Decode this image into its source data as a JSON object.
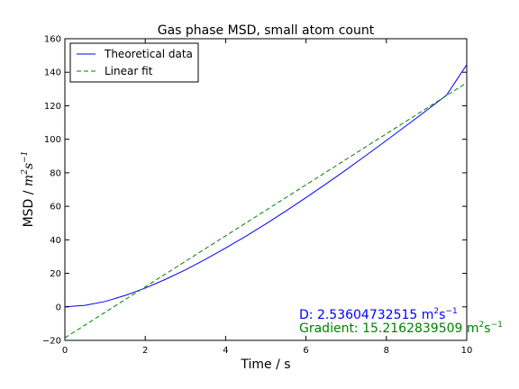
{
  "chart_data": {
    "type": "line",
    "title": "Gas phase MSD, small atom count",
    "xlabel": "Time / s",
    "ylabel_prefix": "MSD / ",
    "ylabel_unit_base_1": "m",
    "ylabel_unit_exp_1": "2",
    "ylabel_unit_base_2": "s",
    "ylabel_unit_exp_2": "−1",
    "xlim": [
      0,
      10
    ],
    "ylim": [
      -20,
      160
    ],
    "xticks": [
      0,
      2,
      4,
      6,
      8,
      10
    ],
    "yticks": [
      -20,
      0,
      20,
      40,
      60,
      80,
      100,
      120,
      140,
      160
    ],
    "xtick_labels": [
      "0",
      "2",
      "4",
      "6",
      "8",
      "10"
    ],
    "ytick_labels": [
      "−20",
      "0",
      "20",
      "40",
      "60",
      "80",
      "100",
      "120",
      "140",
      "160"
    ],
    "grid": false,
    "legend_position": "upper-left",
    "series": [
      {
        "name": "Theoretical data",
        "color": "#0000ff",
        "style": "solid",
        "x": [
          0,
          0.5,
          1,
          1.5,
          2,
          2.5,
          3,
          3.5,
          4,
          4.5,
          5,
          5.5,
          6,
          6.5,
          7,
          7.5,
          8,
          8.5,
          9,
          9.5,
          10
        ],
        "y": [
          0,
          0.9,
          3.2,
          6.8,
          11.2,
          16.4,
          22.1,
          28.4,
          35.1,
          42.1,
          49.5,
          57.2,
          65.2,
          73.4,
          81.8,
          90.5,
          99.3,
          108.2,
          117.2,
          126.4,
          144.5
        ]
      },
      {
        "name": "Linear fit",
        "color": "#008000",
        "style": "dashed",
        "x": [
          0,
          10
        ],
        "y": [
          -18.5,
          133.7
        ]
      }
    ],
    "annotations": [
      {
        "label": "D: 2.53604732515 ",
        "unit_base_1": "m",
        "unit_exp_1": "2",
        "unit_base_2": "s",
        "unit_exp_2": "−1",
        "color": "#0000ff"
      },
      {
        "label": "Gradient: 15.2162839509 ",
        "unit_base_1": "m",
        "unit_exp_1": "2",
        "unit_base_2": "s",
        "unit_exp_2": "−1",
        "color": "#008000"
      }
    ]
  }
}
